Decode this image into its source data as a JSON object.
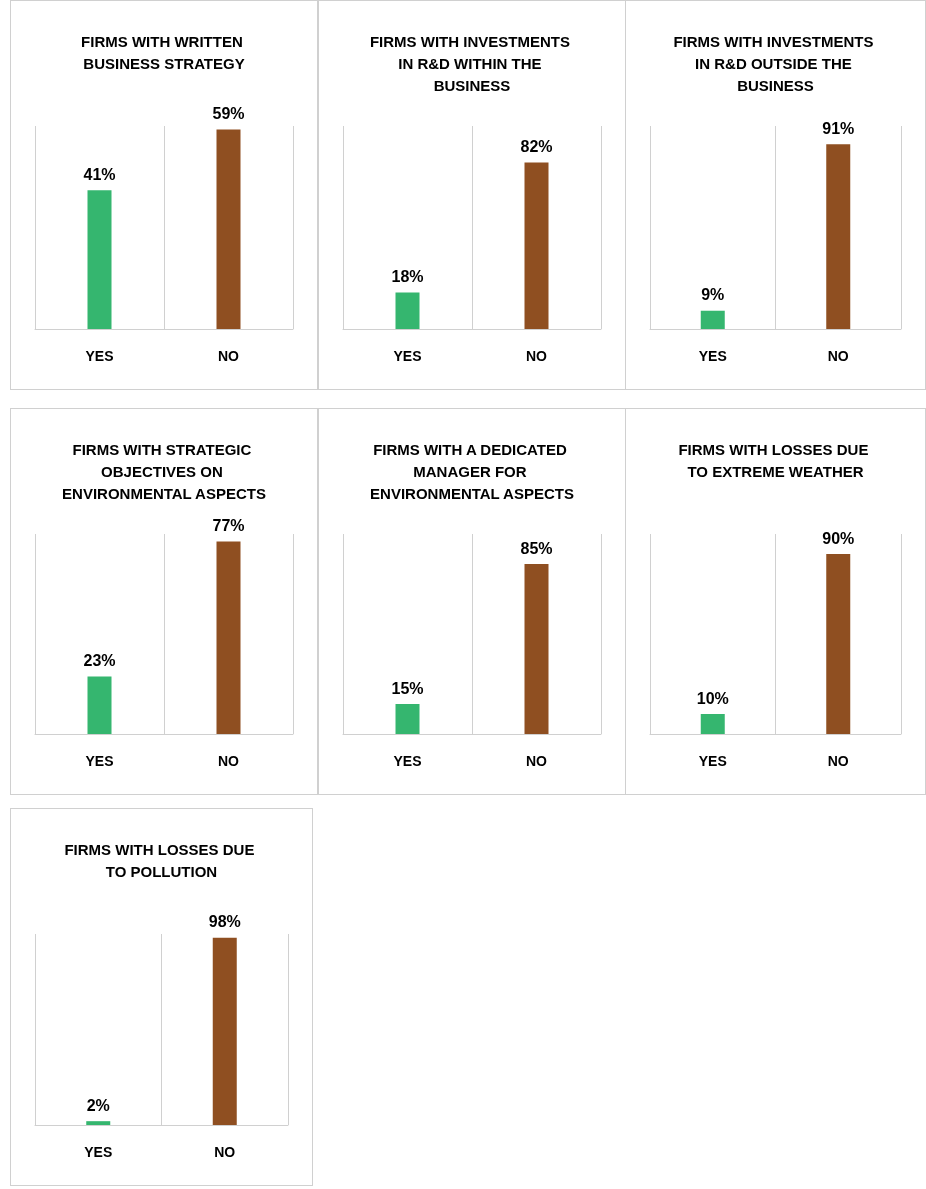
{
  "chart_data": [
    {
      "type": "bar",
      "title": "FIRMS WITH WRITTEN BUSINESS STRATEGY",
      "categories": [
        "YES",
        "NO"
      ],
      "values": [
        41,
        59
      ],
      "colors": [
        "#35b66f",
        "#8f4f21"
      ],
      "value_labels": [
        "41%",
        "59%"
      ],
      "grid": "x"
    },
    {
      "type": "bar",
      "title": "FIRMS WITH INVESTMENTS IN R&D WITHIN THE BUSINESS",
      "categories": [
        "YES",
        "NO"
      ],
      "values": [
        18,
        82
      ],
      "colors": [
        "#35b66f",
        "#8f4f21"
      ],
      "value_labels": [
        "18%",
        "82%"
      ],
      "grid": "x"
    },
    {
      "type": "bar",
      "title": "FIRMS WITH INVESTMENTS IN R&D OUTSIDE THE BUSINESS",
      "categories": [
        "YES",
        "NO"
      ],
      "values": [
        9,
        91
      ],
      "colors": [
        "#35b66f",
        "#8f4f21"
      ],
      "value_labels": [
        "9%",
        "91%"
      ],
      "grid": "x"
    },
    {
      "type": "bar",
      "title": "FIRMS WITH STRATEGIC OBJECTIVES ON ENVIRONMENTAL ASPECTS",
      "categories": [
        "YES",
        "NO"
      ],
      "values": [
        23,
        77
      ],
      "colors": [
        "#35b66f",
        "#8f4f21"
      ],
      "value_labels": [
        "23%",
        "77%"
      ],
      "grid": "x"
    },
    {
      "type": "bar",
      "title": "FIRMS WITH A DEDICATED MANAGER FOR ENVIRONMENTAL ASPECTS",
      "categories": [
        "YES",
        "NO"
      ],
      "values": [
        15,
        85
      ],
      "colors": [
        "#35b66f",
        "#8f4f21"
      ],
      "value_labels": [
        "15%",
        "85%"
      ],
      "grid": "x"
    },
    {
      "type": "bar",
      "title": "FIRMS WITH LOSSES DUE TO EXTREME WEATHER",
      "categories": [
        "YES",
        "NO"
      ],
      "values": [
        10,
        90
      ],
      "colors": [
        "#35b66f",
        "#8f4f21"
      ],
      "value_labels": [
        "10%",
        "90%"
      ],
      "grid": "x"
    },
    {
      "type": "bar",
      "title": "FIRMS WITH LOSSES DUE TO POLLUTION",
      "categories": [
        "YES",
        "NO"
      ],
      "values": [
        2,
        98
      ],
      "colors": [
        "#35b66f",
        "#8f4f21"
      ],
      "value_labels": [
        "2%",
        "98%"
      ],
      "grid": "x"
    }
  ]
}
